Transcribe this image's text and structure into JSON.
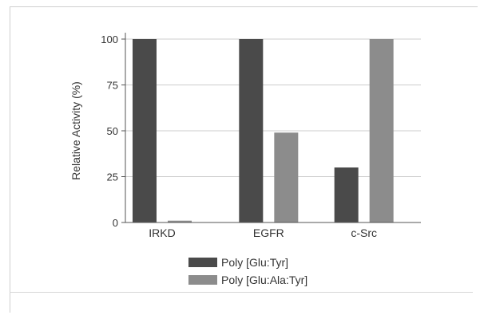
{
  "chart_data": {
    "type": "bar",
    "categories": [
      "IRKD",
      "EGFR",
      "c-Src"
    ],
    "series": [
      {
        "name": "Poly [Glu:Tyr]",
        "values": [
          100,
          100,
          30
        ],
        "color": "#4a4a4a"
      },
      {
        "name": "Poly [Glu:Ala:Tyr]",
        "values": [
          1,
          49,
          100
        ],
        "color": "#8c8c8c"
      }
    ],
    "title": "",
    "xlabel": "",
    "ylabel": "Relative Activity (%)",
    "ylim": [
      0,
      100
    ],
    "yticks": [
      0,
      25,
      50,
      75,
      100
    ],
    "grid": true,
    "legend_position": "bottom"
  }
}
